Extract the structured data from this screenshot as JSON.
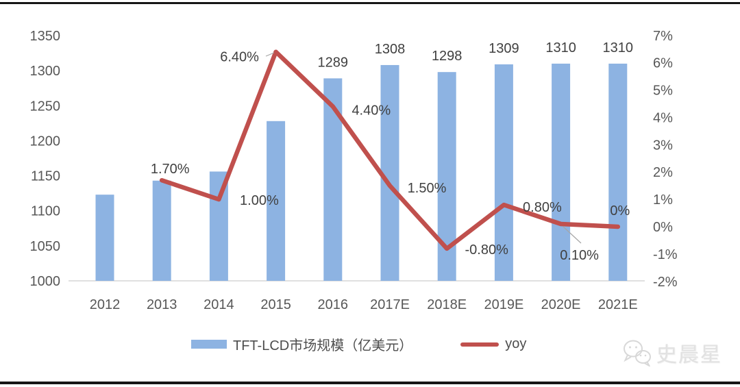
{
  "watermark": {
    "text": "史晨星"
  },
  "legend": {
    "bar": {
      "label": "TFT-LCD市场规模（亿美元）",
      "color": "#8DB3E2"
    },
    "line": {
      "label": "yoy",
      "color": "#C0504D"
    }
  },
  "chart_data": {
    "type": "combo",
    "categories": [
      "2012",
      "2013",
      "2014",
      "2015",
      "2016",
      "2017E",
      "2018E",
      "2019E",
      "2020E",
      "2021E"
    ],
    "series": [
      {
        "name": "TFT-LCD市场规模（亿美元）",
        "type": "bar",
        "axis": "left",
        "color": "#8DB3E2",
        "values": [
          1123,
          1143,
          1156,
          1228,
          1289,
          1308,
          1298,
          1309,
          1310,
          1310
        ],
        "labels": [
          null,
          null,
          null,
          null,
          "1289",
          "1308",
          "1298",
          "1309",
          "1310",
          "1310"
        ]
      },
      {
        "name": "yoy",
        "type": "line",
        "axis": "right",
        "color": "#C0504D",
        "values": [
          null,
          1.7,
          1.0,
          6.4,
          4.4,
          1.5,
          -0.8,
          0.8,
          0.1,
          0
        ],
        "labels": [
          null,
          "1.70%",
          "1.00%",
          "6.40%",
          "4.40%",
          "1.50%",
          "-0.80%",
          "0.80%",
          "0.10%",
          "0%"
        ]
      }
    ],
    "left_axis": {
      "min": 1000,
      "max": 1350,
      "tick_values": [
        1350,
        1300,
        1250,
        1200,
        1150,
        1100,
        1050,
        1000
      ],
      "tick_labels": [
        "1350",
        "1300",
        "1250",
        "1200",
        "1150",
        "1100",
        "1050",
        "1000"
      ]
    },
    "right_axis": {
      "min": -2,
      "max": 7,
      "tick_values": [
        7,
        6,
        5,
        4,
        3,
        2,
        1,
        0,
        -1,
        -2
      ],
      "tick_labels": [
        "7%",
        "6%",
        "5%",
        "4%",
        "3%",
        "2%",
        "1%",
        "0%",
        "-1%",
        "-2%"
      ]
    },
    "grid": false,
    "legend_position": "bottom",
    "title": ""
  }
}
